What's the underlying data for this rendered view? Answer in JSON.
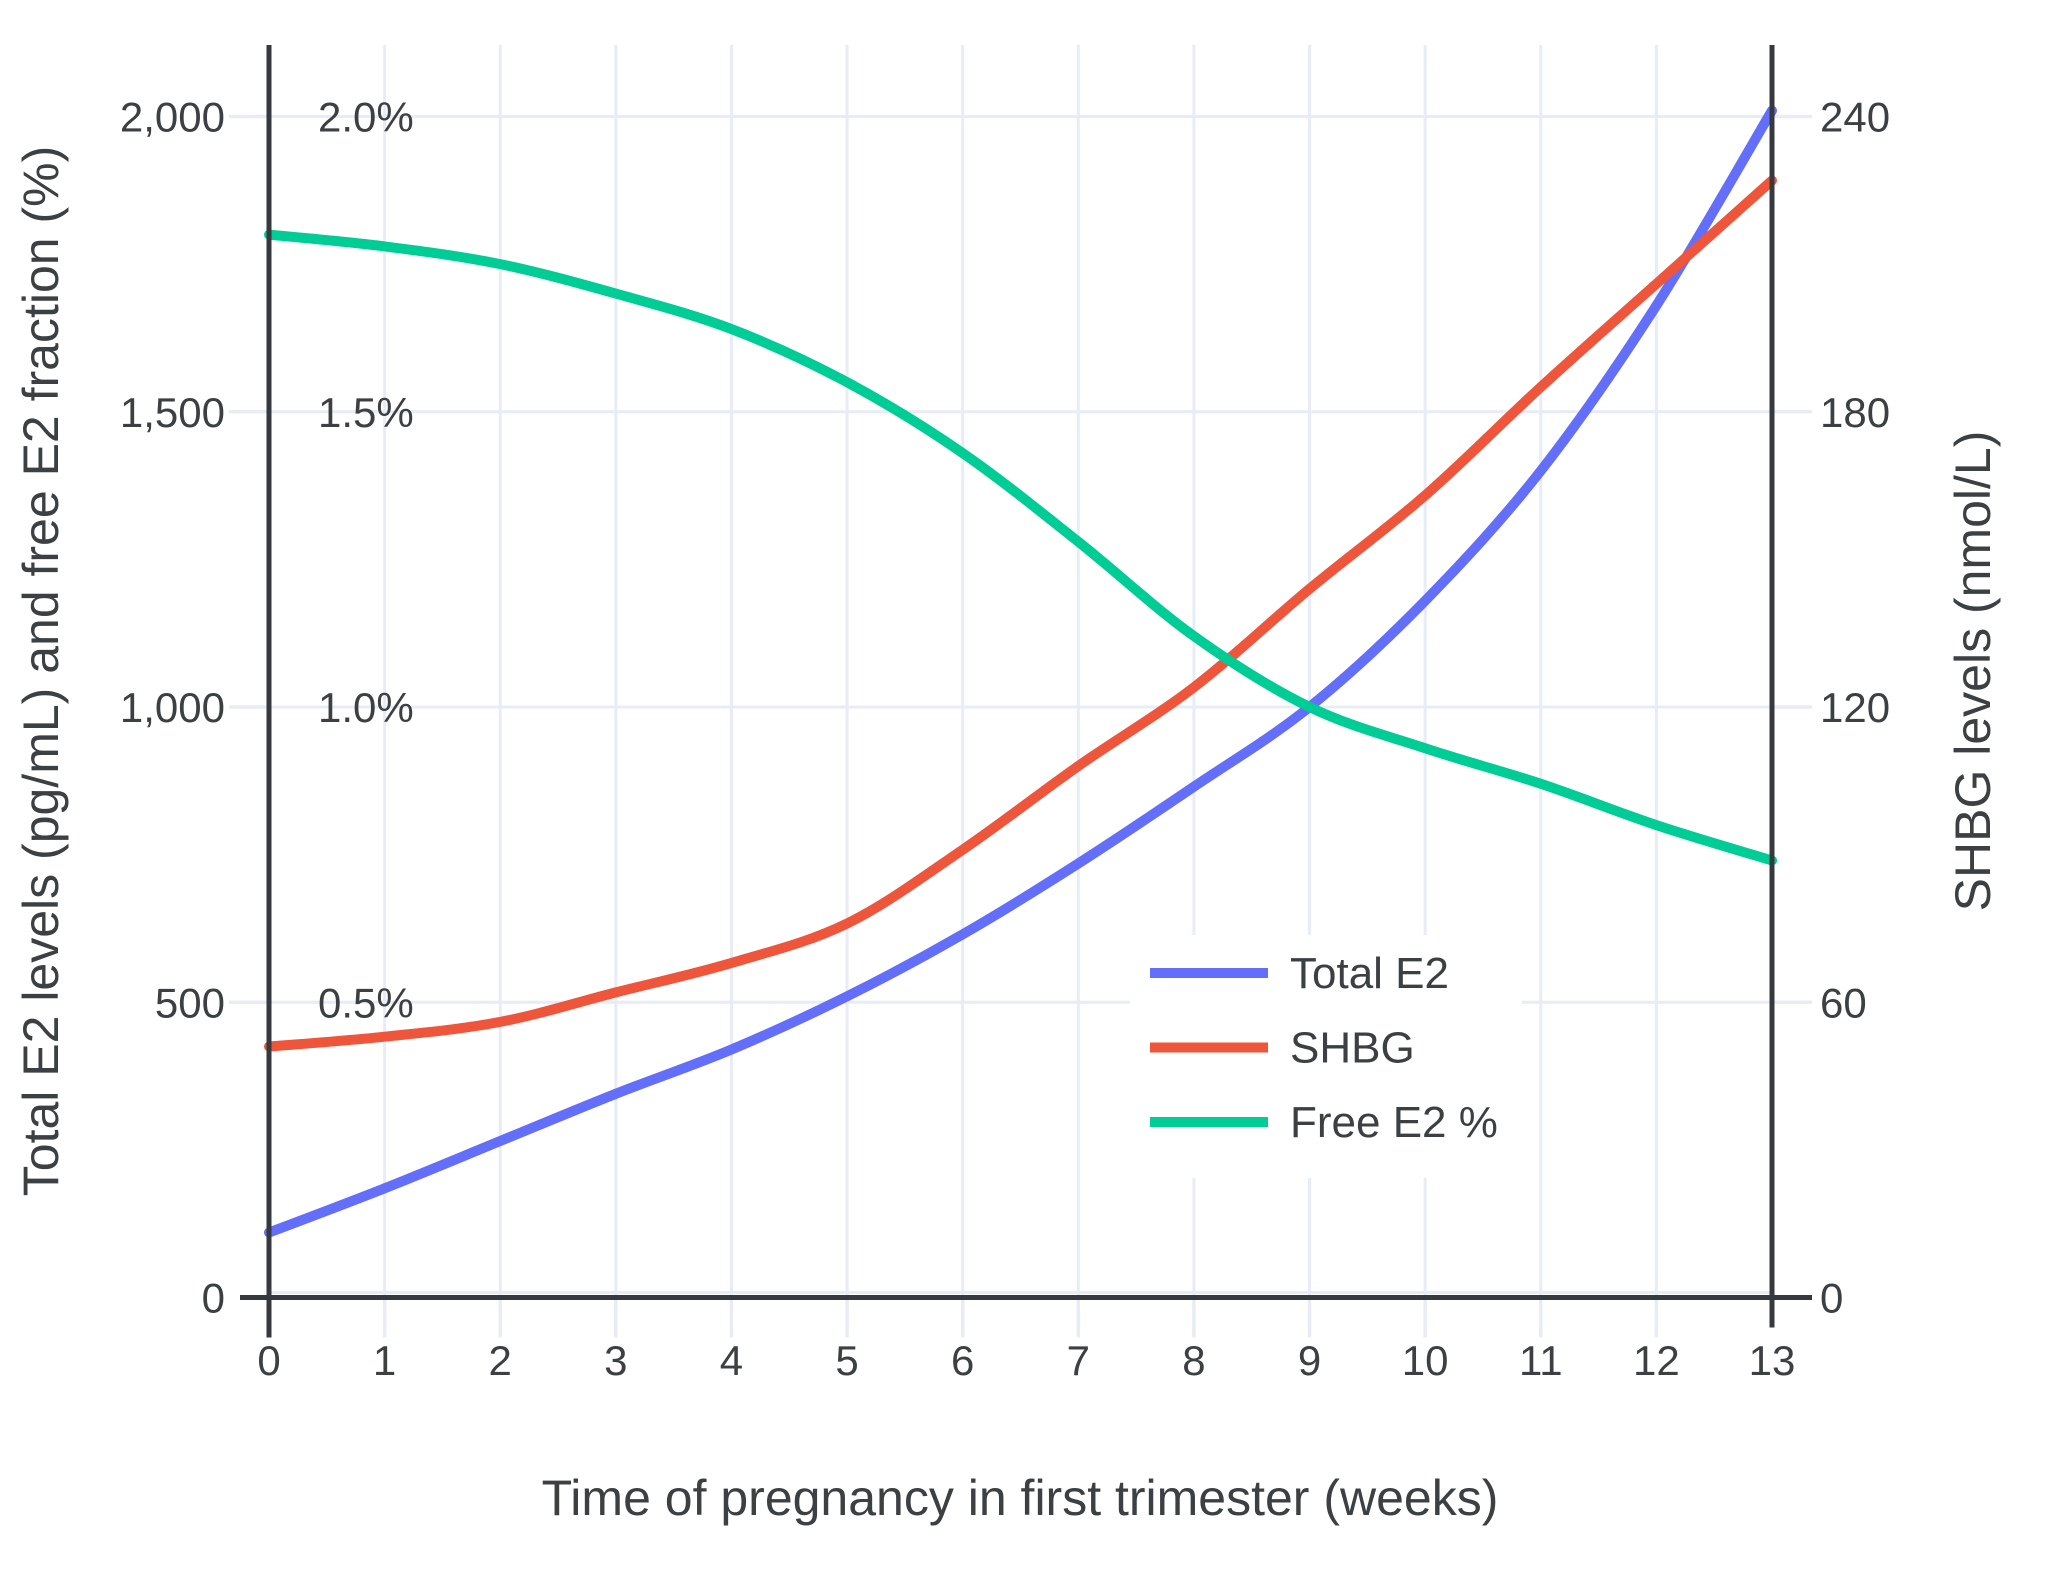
{
  "chart_data": {
    "type": "line",
    "title": "",
    "xlabel": "Time of pregnancy in first trimester (weeks)",
    "x": [
      0,
      1,
      2,
      3,
      4,
      5,
      6,
      7,
      8,
      9,
      10,
      11,
      12,
      13
    ],
    "x_tick_labels": [
      "0",
      "1",
      "2",
      "3",
      "4",
      "5",
      "6",
      "7",
      "8",
      "9",
      "10",
      "11",
      "12",
      "13"
    ],
    "grid": true,
    "legend_position": "inside-lower-right",
    "background_color": "#ffffff",
    "grid_color": "#e7ecf6",
    "axis_line_color": "#36393d",
    "text_color": "#3c4043",
    "y_left": {
      "title": "Total E2 levels (pg/mL) and free E2 fraction (%)",
      "range": [
        0,
        2120
      ],
      "tick_values": [
        0,
        500,
        1000,
        1500,
        2000
      ],
      "tick_labels": [
        "0",
        "500",
        "1,000",
        "1,500",
        "2,000"
      ],
      "percent_tick_labels": [
        {
          "value": 500,
          "label": "0.5%"
        },
        {
          "value": 1000,
          "label": "1.0%"
        },
        {
          "value": 1500,
          "label": "1.5%"
        },
        {
          "value": 2000,
          "label": "2.0%"
        }
      ]
    },
    "y_right": {
      "title": "SHBG levels (nmol/L)",
      "range": [
        0,
        254
      ],
      "tick_values": [
        0,
        60,
        120,
        180,
        240
      ],
      "tick_labels": [
        "0",
        "60",
        "120",
        "180",
        "240"
      ]
    },
    "series": [
      {
        "name": "Total E2",
        "axis": "left",
        "unit": "pg/mL",
        "color": "#636EFA",
        "values": [
          110,
          185,
          265,
          345,
          420,
          510,
          615,
          735,
          865,
          1000,
          1180,
          1400,
          1680,
          2010
        ]
      },
      {
        "name": "SHBG",
        "axis": "right",
        "unit": "nmol/L",
        "color": "#EF553B",
        "values": [
          51,
          53,
          56,
          62,
          68,
          76,
          91,
          108,
          124,
          144,
          163,
          185,
          206,
          227
        ]
      },
      {
        "name": "Free E2 %",
        "axis": "left-percent",
        "unit": "%",
        "color": "#00CC96",
        "values": [
          1.8,
          1.78,
          1.75,
          1.7,
          1.64,
          1.55,
          1.43,
          1.28,
          1.12,
          1.0,
          0.93,
          0.87,
          0.8,
          0.74
        ]
      }
    ]
  }
}
